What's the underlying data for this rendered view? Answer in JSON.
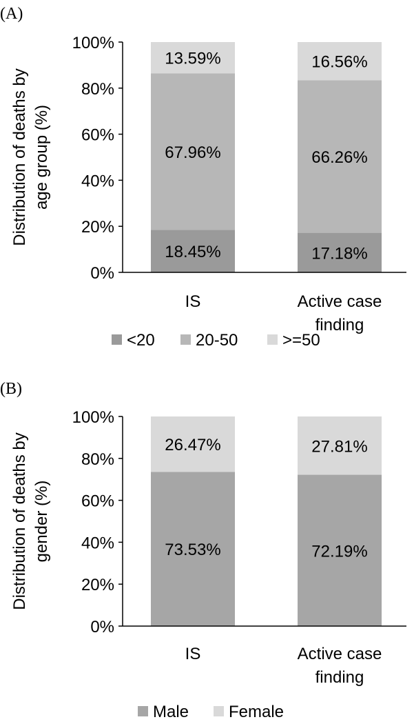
{
  "colors": {
    "lt20": "#9a9a9a",
    "mid": "#b7b7b7",
    "ge50": "#d9d9d9",
    "male": "#a6a6a6",
    "female": "#d9d9d9"
  },
  "chart_data": [
    {
      "panel_label": "(A)",
      "type": "bar",
      "stacked": true,
      "percent_stacked": true,
      "categories": [
        "IS",
        "Active case finding"
      ],
      "category_lines": [
        [
          "IS"
        ],
        [
          "Active case",
          "finding"
        ]
      ],
      "ylabel_lines": [
        "Distribution of deaths  by",
        "age group (%)"
      ],
      "ylim": [
        0,
        100
      ],
      "yticks": [
        "0%",
        "20%",
        "40%",
        "60%",
        "80%",
        "100%"
      ],
      "legend_position": "bottom",
      "series": [
        {
          "name": "<20",
          "values": [
            18.45,
            17.18
          ],
          "labels": [
            "18.45%",
            "17.18%"
          ],
          "color_key": "lt20"
        },
        {
          "name": "20-50",
          "values": [
            67.96,
            66.26
          ],
          "labels": [
            "67.96%",
            "66.26%"
          ],
          "color_key": "mid"
        },
        {
          "name": ">=50",
          "values": [
            13.59,
            16.56
          ],
          "labels": [
            "13.59%",
            "16.56%"
          ],
          "color_key": "ge50"
        }
      ]
    },
    {
      "panel_label": "(B)",
      "type": "bar",
      "stacked": true,
      "percent_stacked": true,
      "categories": [
        "IS",
        "Active case finding"
      ],
      "category_lines": [
        [
          "IS"
        ],
        [
          "Active case",
          "finding"
        ]
      ],
      "ylabel_lines": [
        "Distribution of deaths by",
        "gender (%)"
      ],
      "ylim": [
        0,
        100
      ],
      "yticks": [
        "0%",
        "20%",
        "40%",
        "60%",
        "80%",
        "100%"
      ],
      "legend_position": "bottom",
      "series": [
        {
          "name": "Male",
          "values": [
            73.53,
            72.19
          ],
          "labels": [
            "73.53%",
            "72.19%"
          ],
          "color_key": "male"
        },
        {
          "name": "Female",
          "values": [
            26.47,
            27.81
          ],
          "labels": [
            "26.47%",
            "27.81%"
          ],
          "color_key": "female"
        }
      ]
    }
  ]
}
